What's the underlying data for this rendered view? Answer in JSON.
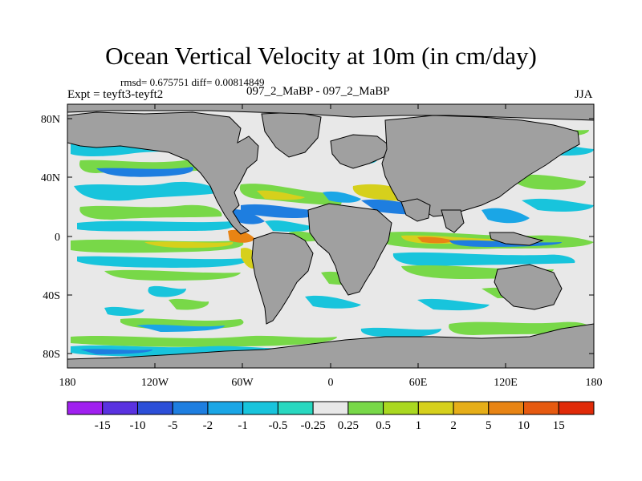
{
  "title": "Ocean Vertical Velocity at 10m (in cm/day)",
  "stats": "rmsd= 0.675751 diff= 0.00814849",
  "experiment": "Expt = teyft3-teyft2",
  "runs": "097_2_MaBP - 097_2_MaBP",
  "season": "JJA",
  "map": {
    "lat_ticks": [
      "80N",
      "40N",
      "0",
      "40S",
      "80S"
    ],
    "lon_ticks": [
      "180",
      "120W",
      "60W",
      "0",
      "60E",
      "120E",
      "180"
    ]
  },
  "colorbar": {
    "labels": [
      "-15",
      "-10",
      "-5",
      "-2",
      "-1",
      "-0.5",
      "-0.25",
      "0.25",
      "0.5",
      "1",
      "2",
      "5",
      "10",
      "15"
    ],
    "colors": [
      "#a020f0",
      "#5a32e0",
      "#2c4fd8",
      "#1e7ee0",
      "#1aa6e6",
      "#18c4dc",
      "#28d8c0",
      "#e8e8e8",
      "#78d848",
      "#aad820",
      "#d6d01c",
      "#e6ae18",
      "#e88414",
      "#e65a10",
      "#e02a08"
    ]
  },
  "palette": {
    "land": "#a0a0a0",
    "ocean": "#e8e8e8"
  }
}
